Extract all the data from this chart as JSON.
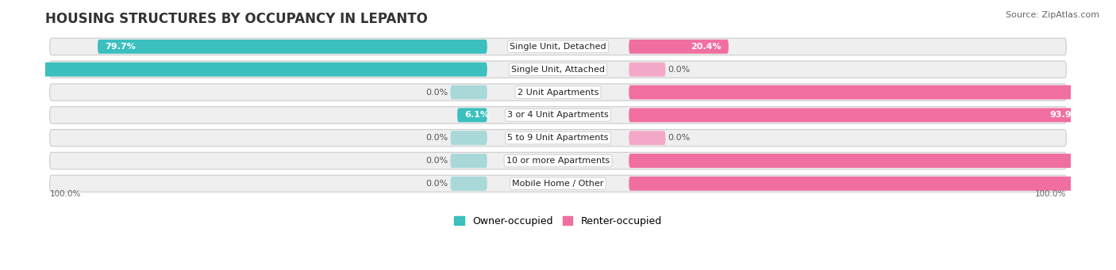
{
  "title": "HOUSING STRUCTURES BY OCCUPANCY IN LEPANTO",
  "source": "Source: ZipAtlas.com",
  "categories": [
    "Single Unit, Detached",
    "Single Unit, Attached",
    "2 Unit Apartments",
    "3 or 4 Unit Apartments",
    "5 to 9 Unit Apartments",
    "10 or more Apartments",
    "Mobile Home / Other"
  ],
  "owner_pct": [
    79.7,
    100.0,
    0.0,
    6.1,
    0.0,
    0.0,
    0.0
  ],
  "renter_pct": [
    20.4,
    0.0,
    100.0,
    93.9,
    0.0,
    100.0,
    100.0
  ],
  "owner_color": "#3bbfbf",
  "owner_color_light": "#a8d8d8",
  "renter_color": "#f06fa0",
  "renter_color_light": "#f4a8c8",
  "owner_label": "Owner-occupied",
  "renter_label": "Renter-occupied",
  "background_color": "#ffffff",
  "row_bg_color": "#efefef",
  "title_fontsize": 12,
  "source_fontsize": 8,
  "label_fontsize": 8,
  "pct_fontsize": 8,
  "legend_fontsize": 9,
  "bottom_axis_label": "100.0%"
}
